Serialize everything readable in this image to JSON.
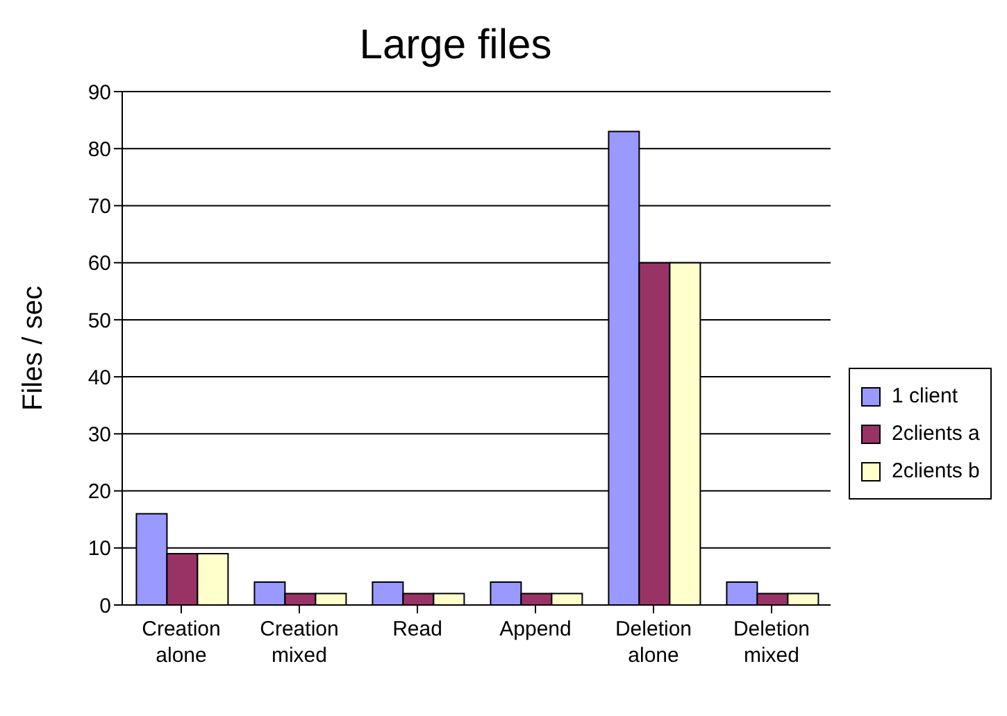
{
  "chart_data": {
    "type": "bar",
    "title": "Large files",
    "ylabel": "Files / sec",
    "categories": [
      "Creation alone",
      "Creation mixed",
      "Read",
      "Append",
      "Deletion alone",
      "Deletion mixed"
    ],
    "series": [
      {
        "name": "1 client",
        "color": "#9999ff",
        "values": [
          16,
          4,
          4,
          4,
          83,
          4
        ]
      },
      {
        "name": "2clients a",
        "color": "#993366",
        "values": [
          9,
          2,
          2,
          2,
          60,
          2
        ]
      },
      {
        "name": "2clients b",
        "color": "#ffffcc",
        "values": [
          9,
          2,
          2,
          2,
          60,
          2
        ]
      }
    ],
    "ylim": [
      0,
      90
    ],
    "yticks": [
      0,
      10,
      20,
      30,
      40,
      50,
      60,
      70,
      80,
      90
    ],
    "grid": "y",
    "legend": "right"
  }
}
